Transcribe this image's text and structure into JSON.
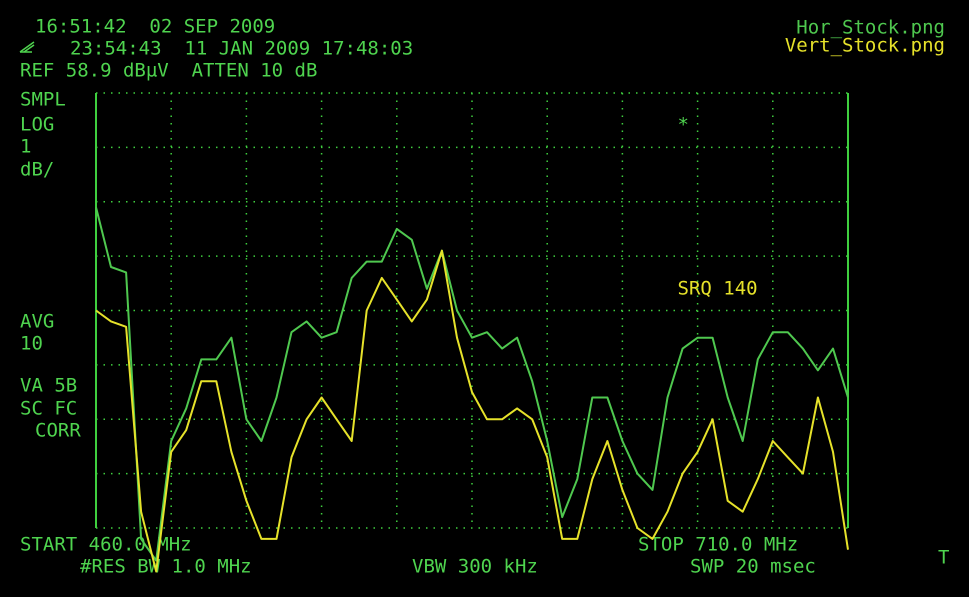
{
  "screen": {
    "clock": "16:51:42  02 SEP 2009",
    "stamp": "23:54:43  11 JAN 2009 17:48:03",
    "ref": "REF 58.9 dBµV  ATTEN 10 dB",
    "left_labels": [
      "SMPL",
      "LOG",
      "1",
      "dB/",
      "AVG",
      "10",
      "VA 5B",
      "SC FC",
      "CORR"
    ],
    "start": "START 460.0 MHz",
    "stop": "STOP 710.0 MHz",
    "rbw": "#RES BW 1.0 MHz",
    "vbw": "VBW 300 kHz",
    "sweep": "SWP 20 msec",
    "corner": "T"
  },
  "chart_data": {
    "type": "line",
    "x": [
      460,
      465,
      470,
      475,
      480,
      485,
      490,
      495,
      500,
      505,
      510,
      515,
      520,
      525,
      530,
      535,
      540,
      545,
      550,
      555,
      560,
      565,
      570,
      575,
      580,
      585,
      590,
      595,
      600,
      605,
      610,
      615,
      620,
      625,
      630,
      635,
      640,
      645,
      650,
      655,
      660,
      665,
      670,
      675,
      680,
      685,
      690,
      695,
      700,
      705,
      710
    ],
    "xlim": [
      460,
      710
    ],
    "ylim": [
      50.9,
      58.9
    ],
    "xticks": [
      460,
      485,
      510,
      535,
      560,
      585,
      610,
      635,
      660,
      685,
      710
    ],
    "yticks": [
      50.9,
      51.9,
      52.9,
      53.9,
      54.9,
      55.9,
      56.9,
      57.9,
      58.9
    ],
    "grid": true,
    "legend": "top-right",
    "annotations": [
      {
        "text": "SRQ 140",
        "color": "#e6e22a",
        "x": 650,
        "y": 55.3
      },
      {
        "text": "*",
        "color": "#4fd44f",
        "x": 650,
        "y": 58.3
      }
    ],
    "series": [
      {
        "name": "Hor_Stock.png",
        "color": "#4fc84f",
        "values": [
          56.8,
          55.7,
          55.6,
          50.7,
          50.3,
          52.5,
          53.1,
          54.0,
          54.0,
          54.4,
          52.9,
          52.5,
          53.3,
          54.5,
          54.7,
          54.4,
          54.5,
          55.5,
          55.8,
          55.8,
          56.4,
          56.2,
          55.3,
          56.0,
          54.9,
          54.4,
          54.5,
          54.2,
          54.4,
          53.6,
          52.5,
          51.1,
          51.8,
          53.3,
          53.3,
          52.5,
          51.9,
          51.6,
          53.3,
          54.2,
          54.4,
          54.4,
          53.3,
          52.5,
          54.0,
          54.5,
          54.5,
          54.2,
          53.8,
          54.2,
          53.3
        ]
      },
      {
        "name": "Vert_Stock.png",
        "color": "#e6e22a",
        "values": [
          54.9,
          54.7,
          54.6,
          51.2,
          50.1,
          52.3,
          52.7,
          53.6,
          53.6,
          52.3,
          51.4,
          50.7,
          50.7,
          52.2,
          52.9,
          53.3,
          52.9,
          52.5,
          54.9,
          55.5,
          55.1,
          54.7,
          55.1,
          56.0,
          54.4,
          53.4,
          52.9,
          52.9,
          53.1,
          52.9,
          52.2,
          50.7,
          50.7,
          51.8,
          52.5,
          51.6,
          50.9,
          50.7,
          51.2,
          51.9,
          52.3,
          52.9,
          51.4,
          51.2,
          51.8,
          52.5,
          52.2,
          51.9,
          53.3,
          52.3,
          50.5
        ]
      }
    ]
  }
}
